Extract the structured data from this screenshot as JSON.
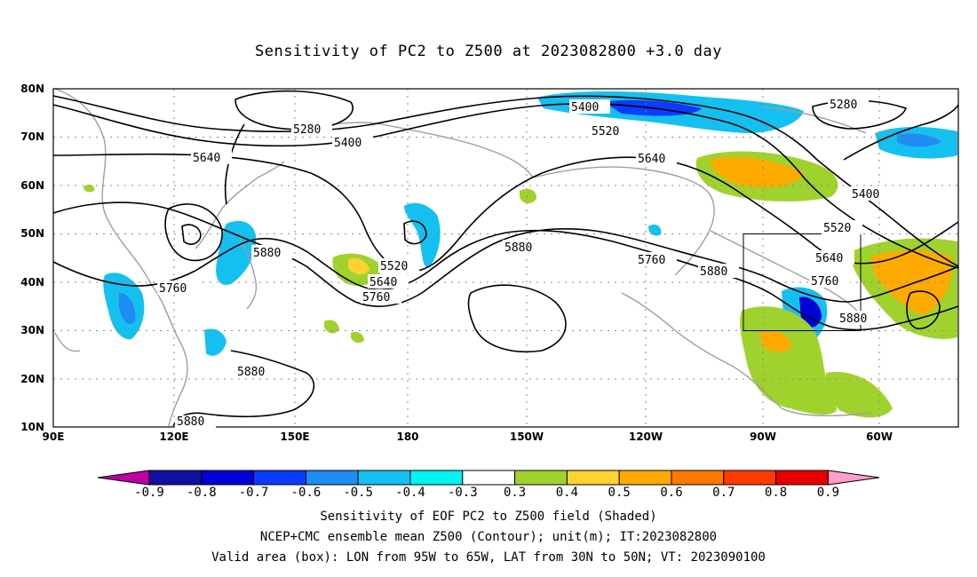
{
  "title": "Sensitivity of PC2 to Z500 at 2023082800 +3.0 day",
  "map": {
    "lat_labels": [
      "80N",
      "70N",
      "60N",
      "50N",
      "40N",
      "30N",
      "20N",
      "10N"
    ],
    "lon_labels": [
      "90E",
      "120E",
      "150E",
      "180",
      "150W",
      "120W",
      "90W",
      "60W"
    ],
    "contour_labels": [
      "5280",
      "5400",
      "5640",
      "5880",
      "5760",
      "5520",
      "5640",
      "5760",
      "5400",
      "5520",
      "5640",
      "5760",
      "5880",
      "5880",
      "5880",
      "5280",
      "5400",
      "5520",
      "5640",
      "5760",
      "5880",
      "5880"
    ],
    "valid_box": {
      "lon_from": "95W",
      "lon_to": "65W",
      "lat_from": "30N",
      "lat_to": "50N"
    }
  },
  "colorbar": {
    "labels": [
      "-0.9",
      "-0.8",
      "-0.7",
      "-0.6",
      "-0.5",
      "-0.4",
      "-0.3",
      "0.3",
      "0.4",
      "0.5",
      "0.6",
      "0.7",
      "0.8",
      "0.9"
    ],
    "colors": [
      "#c000a0",
      "#1010a0",
      "#0000d8",
      "#0a3cff",
      "#1e8cf0",
      "#14c0f0",
      "#00f4f4",
      "#ffffff",
      "#a0d22d",
      "#ffd232",
      "#ffaa00",
      "#ff7800",
      "#ff3c00",
      "#e60000",
      "#ff9ec8"
    ]
  },
  "captions": {
    "line1": "Sensitivity of EOF PC2 to Z500 field (Shaded)",
    "line2": "NCEP+CMC ensemble mean Z500 (Contour); unit(m); IT:2023082800",
    "line3": "Valid area (box): LON from 95W to 65W, LAT from 30N to 50N; VT: 2023090100"
  }
}
